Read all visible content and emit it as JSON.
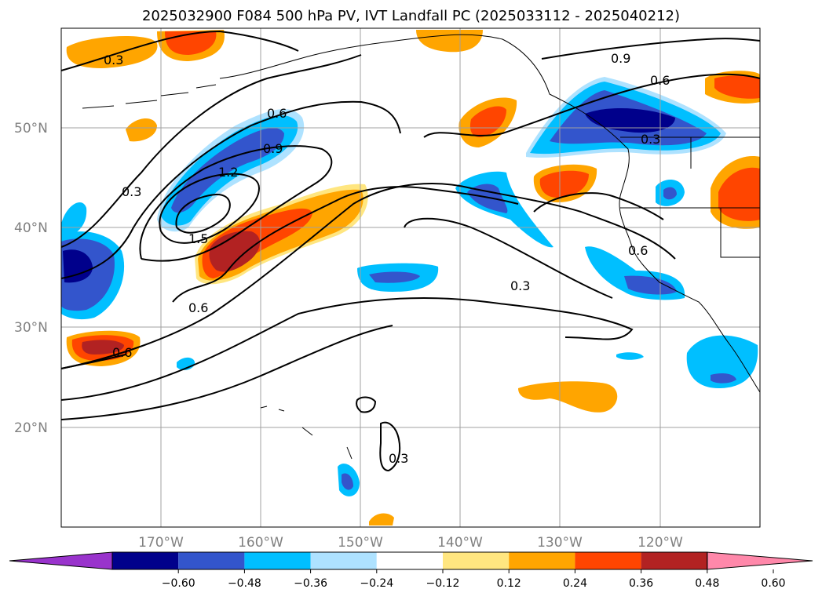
{
  "title": "2025032900 F084 500 hPa PV, IVT Landfall PC (2025033112 - 2025040212)",
  "axes": {
    "lat_ticks": [
      "50°N",
      "40°N",
      "30°N",
      "20°N"
    ],
    "lon_ticks": [
      "170°W",
      "160°W",
      "150°W",
      "140°W",
      "130°W",
      "120°W"
    ]
  },
  "colorbar": {
    "ticks": [
      "−0.60",
      "−0.48",
      "−0.36",
      "−0.24",
      "−0.12",
      "0.12",
      "0.24",
      "0.36",
      "0.48",
      "0.60"
    ],
    "colors": [
      "#9933cc",
      "#00008b",
      "#3355cc",
      "#00bfff",
      "#aee2ff",
      "#ffffff",
      "#ffe680",
      "#ffa500",
      "#ff4500",
      "#b22222",
      "#ff88aa"
    ]
  },
  "contour_labels": [
    "0.3",
    "0.6",
    "0.9",
    "1.2",
    "1.5",
    "0.6",
    "0.3",
    "0.9",
    "0.6",
    "0.3",
    "0.6",
    "0.6",
    "0.3",
    "0.3"
  ],
  "colors": {
    "neg_dark": "#00008b",
    "neg_mid": "#3355cc",
    "neg_light": "#00bfff",
    "neg_pale": "#aee2ff",
    "pos_pale": "#ffe680",
    "pos_light": "#ffa500",
    "pos_mid": "#ff4500",
    "pos_dark": "#b22222"
  }
}
